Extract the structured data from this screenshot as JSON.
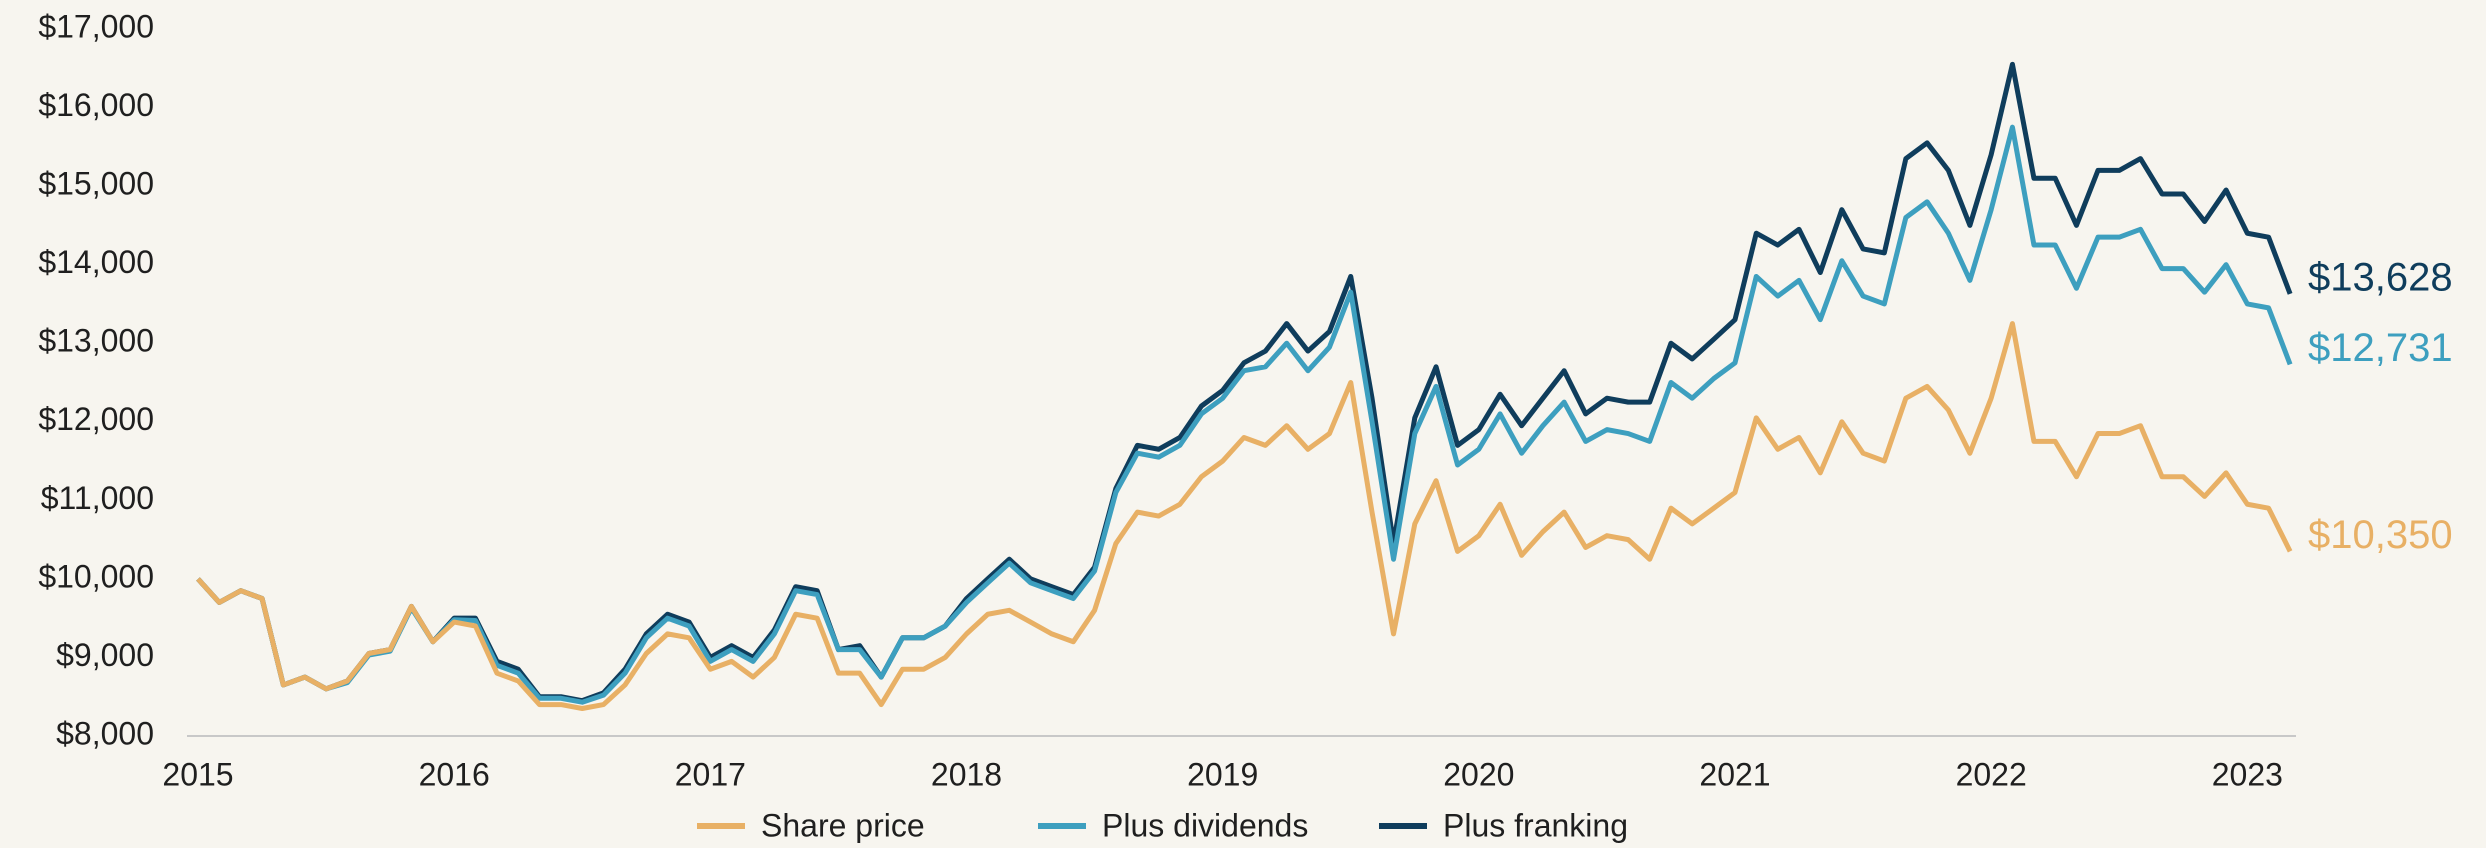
{
  "chart_data": {
    "type": "line",
    "x": [
      2015,
      2015.083,
      2015.167,
      2015.25,
      2015.333,
      2015.417,
      2015.5,
      2015.583,
      2015.667,
      2015.75,
      2015.833,
      2015.917,
      2016,
      2016.083,
      2016.167,
      2016.25,
      2016.333,
      2016.417,
      2016.5,
      2016.583,
      2016.667,
      2016.75,
      2016.833,
      2016.917,
      2017,
      2017.083,
      2017.167,
      2017.25,
      2017.333,
      2017.417,
      2017.5,
      2017.583,
      2017.667,
      2017.75,
      2017.833,
      2017.917,
      2018,
      2018.083,
      2018.167,
      2018.25,
      2018.333,
      2018.417,
      2018.5,
      2018.583,
      2018.667,
      2018.75,
      2018.833,
      2018.917,
      2019,
      2019.083,
      2019.167,
      2019.25,
      2019.333,
      2019.417,
      2019.5,
      2019.583,
      2019.667,
      2019.75,
      2019.833,
      2019.917,
      2020,
      2020.083,
      2020.167,
      2020.25,
      2020.333,
      2020.417,
      2020.5,
      2020.583,
      2020.667,
      2020.75,
      2020.833,
      2020.917,
      2021,
      2021.083,
      2021.167,
      2021.25,
      2021.333,
      2021.417,
      2021.5,
      2021.583,
      2021.667,
      2021.75,
      2021.833,
      2021.917,
      2022,
      2022.083,
      2022.167,
      2022.25,
      2022.333,
      2022.417,
      2022.5,
      2022.583,
      2022.667,
      2022.75,
      2022.833,
      2022.917,
      2023,
      2023.083,
      2023.167
    ],
    "series": [
      {
        "name": "Share price",
        "color": "#e8b065",
        "end_label": "$10,350",
        "values": [
          10000,
          9700,
          9850,
          9750,
          8650,
          8750,
          8600,
          8700,
          9050,
          9100,
          9650,
          9200,
          9450,
          9400,
          8800,
          8700,
          8400,
          8400,
          8350,
          8400,
          8650,
          9050,
          9300,
          9250,
          8850,
          8950,
          8750,
          9000,
          9550,
          9500,
          8800,
          8800,
          8400,
          8850,
          8850,
          9000,
          9300,
          9550,
          9600,
          9450,
          9300,
          9200,
          9600,
          10450,
          10850,
          10800,
          10950,
          11300,
          11500,
          11800,
          11700,
          11950,
          11650,
          11850,
          12500,
          10850,
          9300,
          10700,
          11250,
          10350,
          10550,
          10950,
          10300,
          10600,
          10850,
          10400,
          10550,
          10500,
          10250,
          10900,
          10700,
          10900,
          11100,
          12050,
          11650,
          11800,
          11350,
          12000,
          11600,
          11500,
          12300,
          12450,
          12150,
          11600,
          12300,
          13250,
          11750,
          11750,
          11300,
          11850,
          11850,
          11950,
          11300,
          11300,
          11050,
          11350,
          10950,
          10900,
          10350
        ]
      },
      {
        "name": "Plus dividends",
        "color": "#3d9fbf",
        "end_label": "$12,731",
        "values": [
          10000,
          9700,
          9850,
          9750,
          8650,
          8750,
          8600,
          8680,
          9030,
          9080,
          9630,
          9200,
          9480,
          9470,
          8900,
          8800,
          8480,
          8480,
          8430,
          8520,
          8800,
          9250,
          9500,
          9400,
          8950,
          9100,
          8950,
          9300,
          9850,
          9800,
          9100,
          9100,
          8750,
          9250,
          9250,
          9400,
          9700,
          9950,
          10200,
          9950,
          9850,
          9750,
          10100,
          11100,
          11600,
          11550,
          11700,
          12100,
          12300,
          12650,
          12700,
          13000,
          12650,
          12950,
          13650,
          12000,
          10250,
          11850,
          12450,
          11450,
          11650,
          12100,
          11600,
          11950,
          12250,
          11750,
          11900,
          11850,
          11750,
          12500,
          12300,
          12550,
          12750,
          13850,
          13600,
          13800,
          13300,
          14050,
          13600,
          13500,
          14600,
          14800,
          14400,
          13800,
          14700,
          15750,
          14250,
          14250,
          13700,
          14350,
          14350,
          14450,
          13950,
          13950,
          13650,
          14000,
          13500,
          13450,
          12731
        ]
      },
      {
        "name": "Plus franking",
        "color": "#0f3d5c",
        "end_label": "$13,628",
        "values": [
          10000,
          9700,
          9850,
          9750,
          8650,
          8750,
          8600,
          8700,
          9050,
          9100,
          9650,
          9200,
          9500,
          9500,
          8950,
          8850,
          8500,
          8500,
          8450,
          8550,
          8850,
          9300,
          9550,
          9450,
          9000,
          9150,
          9000,
          9350,
          9900,
          9850,
          9100,
          9150,
          8750,
          9250,
          9250,
          9400,
          9750,
          10000,
          10250,
          10000,
          9900,
          9800,
          10150,
          11150,
          11700,
          11650,
          11800,
          12200,
          12400,
          12750,
          12900,
          13250,
          12900,
          13150,
          13850,
          12300,
          10450,
          12050,
          12700,
          11700,
          11900,
          12350,
          11950,
          12300,
          12650,
          12100,
          12300,
          12250,
          12250,
          13000,
          12800,
          13050,
          13300,
          14400,
          14250,
          14450,
          13900,
          14700,
          14200,
          14150,
          15350,
          15550,
          15200,
          14500,
          15400,
          16550,
          15100,
          15100,
          14500,
          15200,
          15200,
          15350,
          14900,
          14900,
          14550,
          14950,
          14400,
          14350,
          13628
        ]
      }
    ],
    "xlim": [
      2014.957,
      2023.19
    ],
    "xticks": [
      2015,
      2016,
      2017,
      2018,
      2019,
      2020,
      2021,
      2022,
      2023
    ],
    "ylim": [
      8000,
      17000
    ],
    "yticks": [
      {
        "value": 8000,
        "label": "$8,000"
      },
      {
        "value": 9000,
        "label": "$9,000"
      },
      {
        "value": 10000,
        "label": "$10,000"
      },
      {
        "value": 11000,
        "label": "$11,000"
      },
      {
        "value": 12000,
        "label": "$12,000"
      },
      {
        "value": 13000,
        "label": "$13,000"
      },
      {
        "value": 14000,
        "label": "$14,000"
      },
      {
        "value": 15000,
        "label": "$15,000"
      },
      {
        "value": 16000,
        "label": "$16,000"
      },
      {
        "value": 17000,
        "label": "$17,000"
      }
    ],
    "legend": "bottom"
  }
}
